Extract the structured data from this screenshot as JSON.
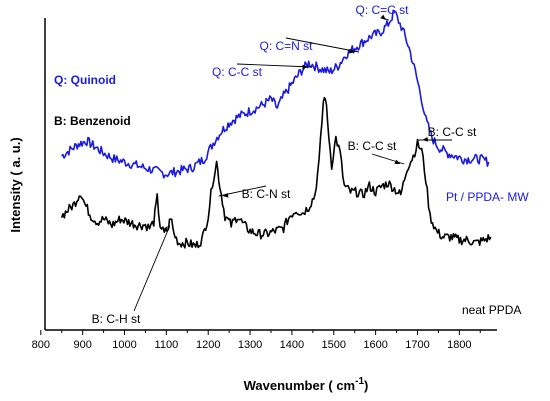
{
  "chart_data": {
    "type": "line",
    "xlabel": "Wavenumber ( cm",
    "xlabel_sup": "-1",
    "xlabel_end": ")",
    "ylabel": "Intensity ( a. u.)",
    "xlim": [
      810,
      1890
    ],
    "ylim": [
      0,
      100
    ],
    "x_ticks": [
      800,
      900,
      1000,
      1100,
      1200,
      1300,
      1400,
      1500,
      1600,
      1700,
      1800
    ],
    "y_ticks_shown": false,
    "legend_notes": [
      {
        "text": "Q: Quinoid",
        "color": "#1a1ae0"
      },
      {
        "text": "B: Benzenoid",
        "color": "#000000"
      }
    ],
    "series": [
      {
        "name": "Pt / PPDA- MW",
        "color": "#1a1ae0",
        "points": [
          [
            850,
            56
          ],
          [
            870,
            58
          ],
          [
            890,
            60
          ],
          [
            910,
            61
          ],
          [
            930,
            59
          ],
          [
            950,
            57
          ],
          [
            975,
            55
          ],
          [
            1000,
            54
          ],
          [
            1025,
            53
          ],
          [
            1050,
            52
          ],
          [
            1075,
            51
          ],
          [
            1100,
            50
          ],
          [
            1130,
            51
          ],
          [
            1160,
            52
          ],
          [
            1190,
            55
          ],
          [
            1215,
            61
          ],
          [
            1230,
            64
          ],
          [
            1250,
            67
          ],
          [
            1270,
            69
          ],
          [
            1300,
            71
          ],
          [
            1330,
            73
          ],
          [
            1350,
            75
          ],
          [
            1365,
            72
          ],
          [
            1380,
            76
          ],
          [
            1400,
            80
          ],
          [
            1420,
            84
          ],
          [
            1440,
            87
          ],
          [
            1455,
            86
          ],
          [
            1470,
            85
          ],
          [
            1490,
            84
          ],
          [
            1510,
            86
          ],
          [
            1530,
            90
          ],
          [
            1550,
            92
          ],
          [
            1570,
            94
          ],
          [
            1590,
            96
          ],
          [
            1610,
            97
          ],
          [
            1630,
            100
          ],
          [
            1645,
            104
          ],
          [
            1655,
            101
          ],
          [
            1665,
            98
          ],
          [
            1680,
            92
          ],
          [
            1695,
            84
          ],
          [
            1710,
            75
          ],
          [
            1720,
            68
          ],
          [
            1735,
            62
          ],
          [
            1750,
            59
          ],
          [
            1770,
            57
          ],
          [
            1790,
            56
          ],
          [
            1810,
            55
          ],
          [
            1830,
            55
          ],
          [
            1850,
            55
          ],
          [
            1870,
            54
          ]
        ]
      },
      {
        "name": "neat PPDA",
        "color": "#000000",
        "points": [
          [
            850,
            36
          ],
          [
            865,
            38
          ],
          [
            880,
            40
          ],
          [
            895,
            44
          ],
          [
            905,
            40
          ],
          [
            920,
            36
          ],
          [
            935,
            34
          ],
          [
            950,
            35
          ],
          [
            970,
            33
          ],
          [
            990,
            35
          ],
          [
            1010,
            34
          ],
          [
            1030,
            33
          ],
          [
            1050,
            33
          ],
          [
            1060,
            32
          ],
          [
            1070,
            34
          ],
          [
            1078,
            42
          ],
          [
            1085,
            33
          ],
          [
            1095,
            30
          ],
          [
            1105,
            32
          ],
          [
            1110,
            36
          ],
          [
            1118,
            30
          ],
          [
            1130,
            27
          ],
          [
            1150,
            27
          ],
          [
            1170,
            26
          ],
          [
            1185,
            28
          ],
          [
            1200,
            36
          ],
          [
            1210,
            47
          ],
          [
            1220,
            54
          ],
          [
            1228,
            46
          ],
          [
            1240,
            36
          ],
          [
            1255,
            33
          ],
          [
            1270,
            36
          ],
          [
            1285,
            33
          ],
          [
            1300,
            31
          ],
          [
            1320,
            30
          ],
          [
            1340,
            30
          ],
          [
            1360,
            31
          ],
          [
            1380,
            32
          ],
          [
            1395,
            36
          ],
          [
            1410,
            38
          ],
          [
            1425,
            37
          ],
          [
            1440,
            39
          ],
          [
            1455,
            43
          ],
          [
            1465,
            54
          ],
          [
            1475,
            74
          ],
          [
            1480,
            76
          ],
          [
            1488,
            63
          ],
          [
            1495,
            53
          ],
          [
            1505,
            62
          ],
          [
            1515,
            57
          ],
          [
            1525,
            46
          ],
          [
            1540,
            44
          ],
          [
            1555,
            44
          ],
          [
            1570,
            43
          ],
          [
            1585,
            46
          ],
          [
            1600,
            44
          ],
          [
            1615,
            46
          ],
          [
            1630,
            47
          ],
          [
            1645,
            45
          ],
          [
            1660,
            43
          ],
          [
            1675,
            52
          ],
          [
            1690,
            56
          ],
          [
            1700,
            60
          ],
          [
            1710,
            58
          ],
          [
            1720,
            48
          ],
          [
            1730,
            36
          ],
          [
            1745,
            31
          ],
          [
            1760,
            29
          ],
          [
            1780,
            29
          ],
          [
            1800,
            28
          ],
          [
            1820,
            28
          ],
          [
            1840,
            27
          ],
          [
            1860,
            28
          ],
          [
            1875,
            29
          ]
        ]
      }
    ],
    "annotations": [
      {
        "text": "Q: C=C st",
        "color": "#1a1ae0",
        "target": [
          1632,
          100
        ]
      },
      {
        "text": "Q: C=N st",
        "color": "#1a1ae0",
        "target": [
          1560,
          92
        ]
      },
      {
        "text": "Q: C-C st",
        "color": "#1a1ae0",
        "target": [
          1448,
          87
        ]
      },
      {
        "text": "B: C-C st",
        "color": "#000000",
        "target": [
          1668,
          52
        ]
      },
      {
        "text": "B: C-C st",
        "color": "#000000",
        "target": [
          1702,
          60
        ]
      },
      {
        "text": "B: C-N st",
        "color": "#000000",
        "target": [
          1225,
          44
        ]
      },
      {
        "text": "B: C-H st",
        "color": "#000000",
        "target": [
          1108,
          34
        ]
      }
    ]
  }
}
